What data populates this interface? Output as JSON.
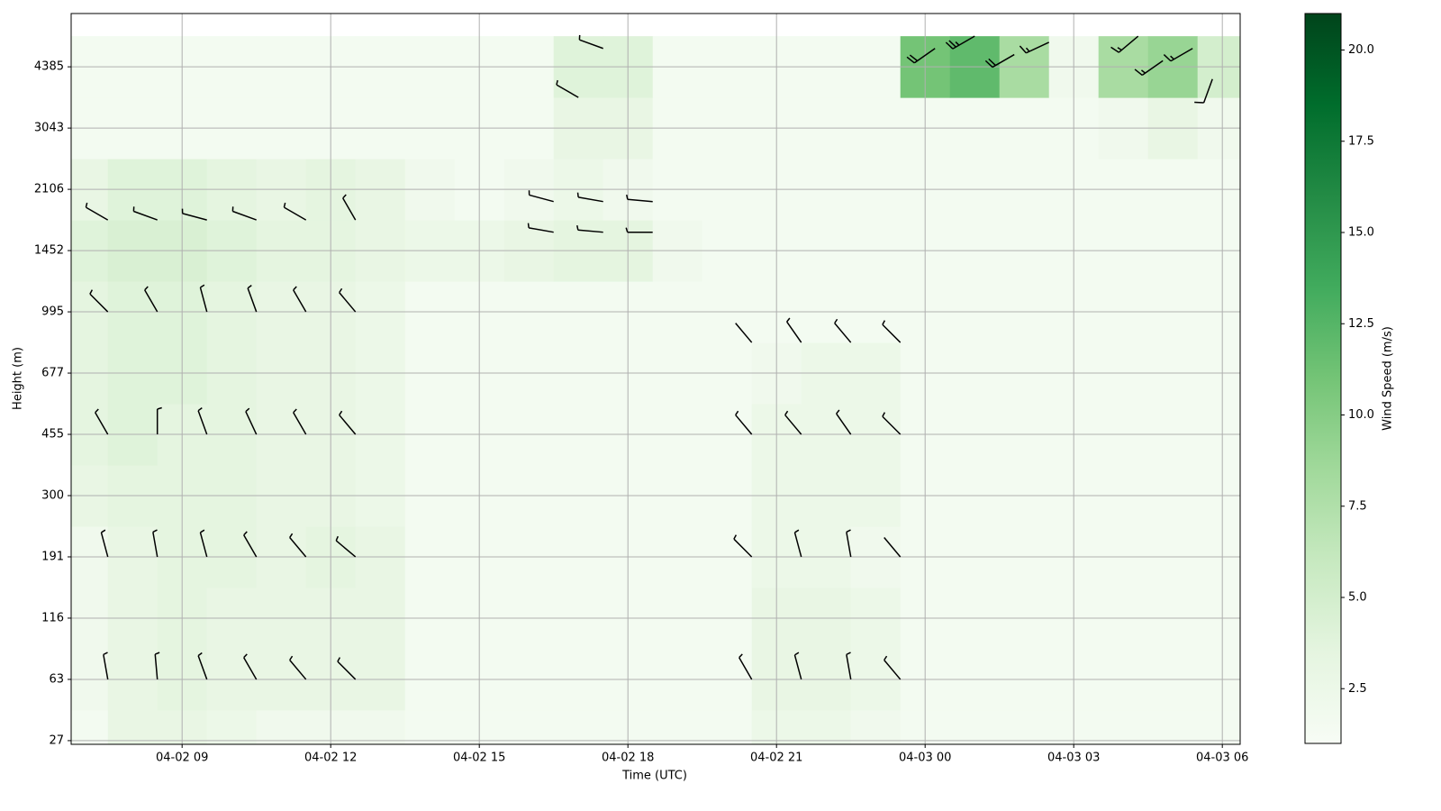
{
  "chart_data": {
    "type": "heatmap_barbs",
    "x_label": "Time (UTC)",
    "y_label": "Height (m)",
    "colorbar_label": "Wind Speed (m/s)",
    "xlim": [
      6.76,
      30.36
    ],
    "xticks": [
      {
        "value": 9,
        "label": "04-02 09"
      },
      {
        "value": 12,
        "label": "04-02 12"
      },
      {
        "value": 15,
        "label": "04-02 15"
      },
      {
        "value": 18,
        "label": "04-02 18"
      },
      {
        "value": 21,
        "label": "04-02 21"
      },
      {
        "value": 24,
        "label": "04-03 00"
      },
      {
        "value": 27,
        "label": "04-03 03"
      },
      {
        "value": 30,
        "label": "04-03 06"
      }
    ],
    "ylim": [
      -0.06,
      11.87
    ],
    "yticks": [
      {
        "value": 0,
        "label": "27"
      },
      {
        "value": 1,
        "label": "63"
      },
      {
        "value": 2,
        "label": "116"
      },
      {
        "value": 3,
        "label": "191"
      },
      {
        "value": 4,
        "label": "300"
      },
      {
        "value": 5,
        "label": "455"
      },
      {
        "value": 6,
        "label": "677"
      },
      {
        "value": 7,
        "label": "995"
      },
      {
        "value": 8,
        "label": "1452"
      },
      {
        "value": 9,
        "label": "2106"
      },
      {
        "value": 10,
        "label": "3043"
      },
      {
        "value": 11,
        "label": "4385"
      }
    ],
    "grid": true,
    "clim": [
      1,
      21
    ],
    "cticks": [
      2.5,
      {
        "value": 5,
        "label": "5.0"
      },
      7.5,
      {
        "value": 10,
        "label": "10.0"
      },
      12.5,
      {
        "value": 15,
        "label": "15.0"
      },
      17.5,
      {
        "value": 20,
        "label": "20.0"
      }
    ],
    "colormap": [
      "#f7fcf5",
      "#e5f5e0",
      "#c7e9c0",
      "#a1d99b",
      "#74c476",
      "#41ab5d",
      "#238b45",
      "#006d2c",
      "#00441b"
    ],
    "x": [
      7,
      8,
      9,
      10,
      11,
      12,
      13,
      14,
      15,
      16,
      17,
      18,
      19,
      20,
      21,
      22,
      23,
      24,
      25,
      26,
      27,
      28,
      29,
      30
    ],
    "y": [
      0,
      1,
      2,
      3,
      4,
      5,
      6,
      7,
      8,
      9,
      10,
      11
    ],
    "z": [
      [
        1.5,
        3,
        3,
        2.5,
        2,
        2,
        2,
        1.5,
        1.5,
        1.5,
        1.5,
        1.5,
        1.5,
        1.5,
        2.5,
        2.5,
        2,
        1.5,
        1.5,
        1.5,
        1.5,
        1.5,
        1.5,
        1.5
      ],
      [
        2,
        3,
        3.5,
        3,
        3,
        3,
        3,
        1.5,
        1.5,
        1.5,
        1.5,
        1.5,
        1.5,
        1.5,
        3,
        3,
        2.5,
        1.5,
        1.5,
        1.5,
        1.5,
        1.5,
        1.5,
        1.5
      ],
      [
        2,
        3,
        3.5,
        3,
        3,
        3,
        3,
        1.5,
        1.5,
        1.5,
        1.5,
        1.5,
        1.5,
        1.5,
        3,
        3,
        2.5,
        1.5,
        1.5,
        1.5,
        1.5,
        1.5,
        1.5,
        1.5
      ],
      [
        2,
        3,
        3.5,
        3.5,
        3,
        3.5,
        3,
        1.5,
        1.5,
        1.5,
        1.5,
        1.5,
        1.5,
        1.5,
        2.5,
        2.5,
        2,
        1.5,
        1.5,
        1.5,
        1.5,
        1.5,
        1.5,
        1.5
      ],
      [
        3,
        3.5,
        3.5,
        3.5,
        3,
        3,
        2.5,
        1.5,
        1.5,
        1.5,
        1.5,
        1.5,
        1.5,
        1.5,
        2.5,
        2.5,
        2.5,
        1.5,
        1.5,
        1.5,
        1.5,
        1.5,
        1.5,
        1.5
      ],
      [
        3.5,
        4,
        3.5,
        3.5,
        3,
        3,
        2.5,
        1.5,
        1.5,
        1.5,
        1.5,
        1.5,
        1.5,
        1.5,
        2.5,
        2.5,
        2.5,
        1.5,
        1.5,
        1.5,
        1.5,
        1.5,
        1.5,
        1.5
      ],
      [
        3.5,
        4,
        4,
        3.5,
        3,
        3,
        2.5,
        1.5,
        1.5,
        1.5,
        1.5,
        1.5,
        1.5,
        1.5,
        2,
        2.5,
        2.5,
        1.5,
        1.5,
        1.5,
        1.5,
        1.5,
        1.5,
        1.5
      ],
      [
        3.5,
        4,
        4,
        3.5,
        3,
        3,
        2.5,
        1.5,
        1.5,
        1.5,
        1.5,
        1.5,
        1.5,
        1.5,
        1.5,
        1.5,
        1.5,
        1.5,
        1.5,
        1.5,
        1.5,
        1.5,
        1.5,
        1.5
      ],
      [
        4,
        4.5,
        4.5,
        4,
        3.5,
        3.5,
        3,
        2.5,
        2.5,
        3,
        3.5,
        3.5,
        2,
        1.5,
        1.5,
        1.5,
        1.5,
        1.5,
        1.5,
        1.5,
        1.5,
        1.5,
        1.5,
        1.5
      ],
      [
        3,
        4,
        4,
        3.5,
        3,
        3.5,
        3,
        2,
        1.5,
        2,
        2.5,
        2,
        1.5,
        1.5,
        1.5,
        1.5,
        1.5,
        1.5,
        1.5,
        1.5,
        1.5,
        1.5,
        1.5,
        1.5
      ],
      [
        1.5,
        1.5,
        1.5,
        1.5,
        1.5,
        1.5,
        1.5,
        1.5,
        1.5,
        1.5,
        3,
        3,
        1.5,
        1.5,
        1.5,
        1.5,
        1.5,
        1.5,
        1.5,
        1.5,
        1.5,
        2,
        3,
        2
      ],
      [
        1.5,
        1.5,
        1.5,
        1.5,
        1.5,
        1.5,
        1.5,
        1.5,
        1.5,
        1.5,
        4,
        4,
        1.5,
        1.5,
        1.5,
        1.5,
        1.5,
        11,
        12,
        8,
        2,
        8,
        9,
        5
      ]
    ],
    "barbs": {
      "x": [
        7.5,
        8.5,
        9.5,
        10.5,
        11.5,
        12.5,
        7.5,
        8.5,
        9.5,
        10.5,
        11.5,
        12.5,
        7.5,
        8.5,
        9.5,
        10.5,
        11.5,
        12.5,
        7.5,
        8.5,
        9.5,
        10.5,
        11.5,
        12.5,
        7.5,
        8.5,
        9.5,
        10.5,
        11.5,
        12.5,
        16.5,
        17.5,
        18.5,
        16.5,
        17.5,
        18.5,
        17,
        17.5,
        20.5,
        21.5,
        22.5,
        23.5,
        20.5,
        21.5,
        22.5,
        23.5,
        20.5,
        21.5,
        22.5,
        23.5,
        20.5,
        21.5,
        22.5,
        23.5,
        24.2,
        25,
        25.8,
        26.5,
        28.3,
        28.8,
        29.4,
        29.8
      ],
      "y": [
        1,
        1,
        1,
        1,
        1,
        1,
        3,
        3,
        3,
        3,
        3,
        3,
        5,
        5,
        5,
        5,
        5,
        5,
        7,
        7,
        7,
        7,
        7,
        7,
        8.5,
        8.5,
        8.5,
        8.5,
        8.5,
        8.5,
        8.3,
        8.3,
        8.3,
        8.8,
        8.8,
        8.8,
        10.5,
        11.3,
        1,
        1,
        1,
        1,
        3,
        3,
        3,
        3,
        5,
        5,
        5,
        5,
        6.5,
        6.5,
        6.5,
        6.5,
        11.3,
        11.5,
        11.2,
        11.4,
        11.5,
        11.1,
        11.3,
        10.8
      ],
      "speed": [
        3,
        3.5,
        3,
        3,
        3,
        3,
        3,
        3.5,
        3.5,
        3,
        3.5,
        3,
        3.5,
        4,
        3.5,
        3.5,
        3,
        3,
        3.5,
        4,
        4,
        3.5,
        3,
        3,
        4,
        4.5,
        4.5,
        4,
        3.5,
        3.5,
        3.5,
        3.5,
        3,
        3,
        3.5,
        3,
        3,
        4,
        2.5,
        3,
        3,
        2.5,
        2.5,
        2.5,
        2.5,
        2,
        2.5,
        2.5,
        2.5,
        2.5,
        2,
        2.5,
        2.5,
        2.5,
        12,
        13,
        11,
        9,
        8,
        9,
        9,
        7
      ],
      "direction": [
        350,
        355,
        340,
        330,
        320,
        315,
        345,
        350,
        345,
        330,
        320,
        310,
        330,
        0,
        340,
        335,
        330,
        320,
        315,
        330,
        345,
        340,
        330,
        320,
        300,
        290,
        285,
        290,
        300,
        330,
        280,
        275,
        270,
        285,
        280,
        275,
        300,
        290,
        330,
        345,
        350,
        320,
        315,
        345,
        350,
        320,
        320,
        320,
        325,
        315,
        320,
        325,
        320,
        315,
        235,
        240,
        240,
        245,
        230,
        235,
        240,
        200
      ]
    }
  }
}
